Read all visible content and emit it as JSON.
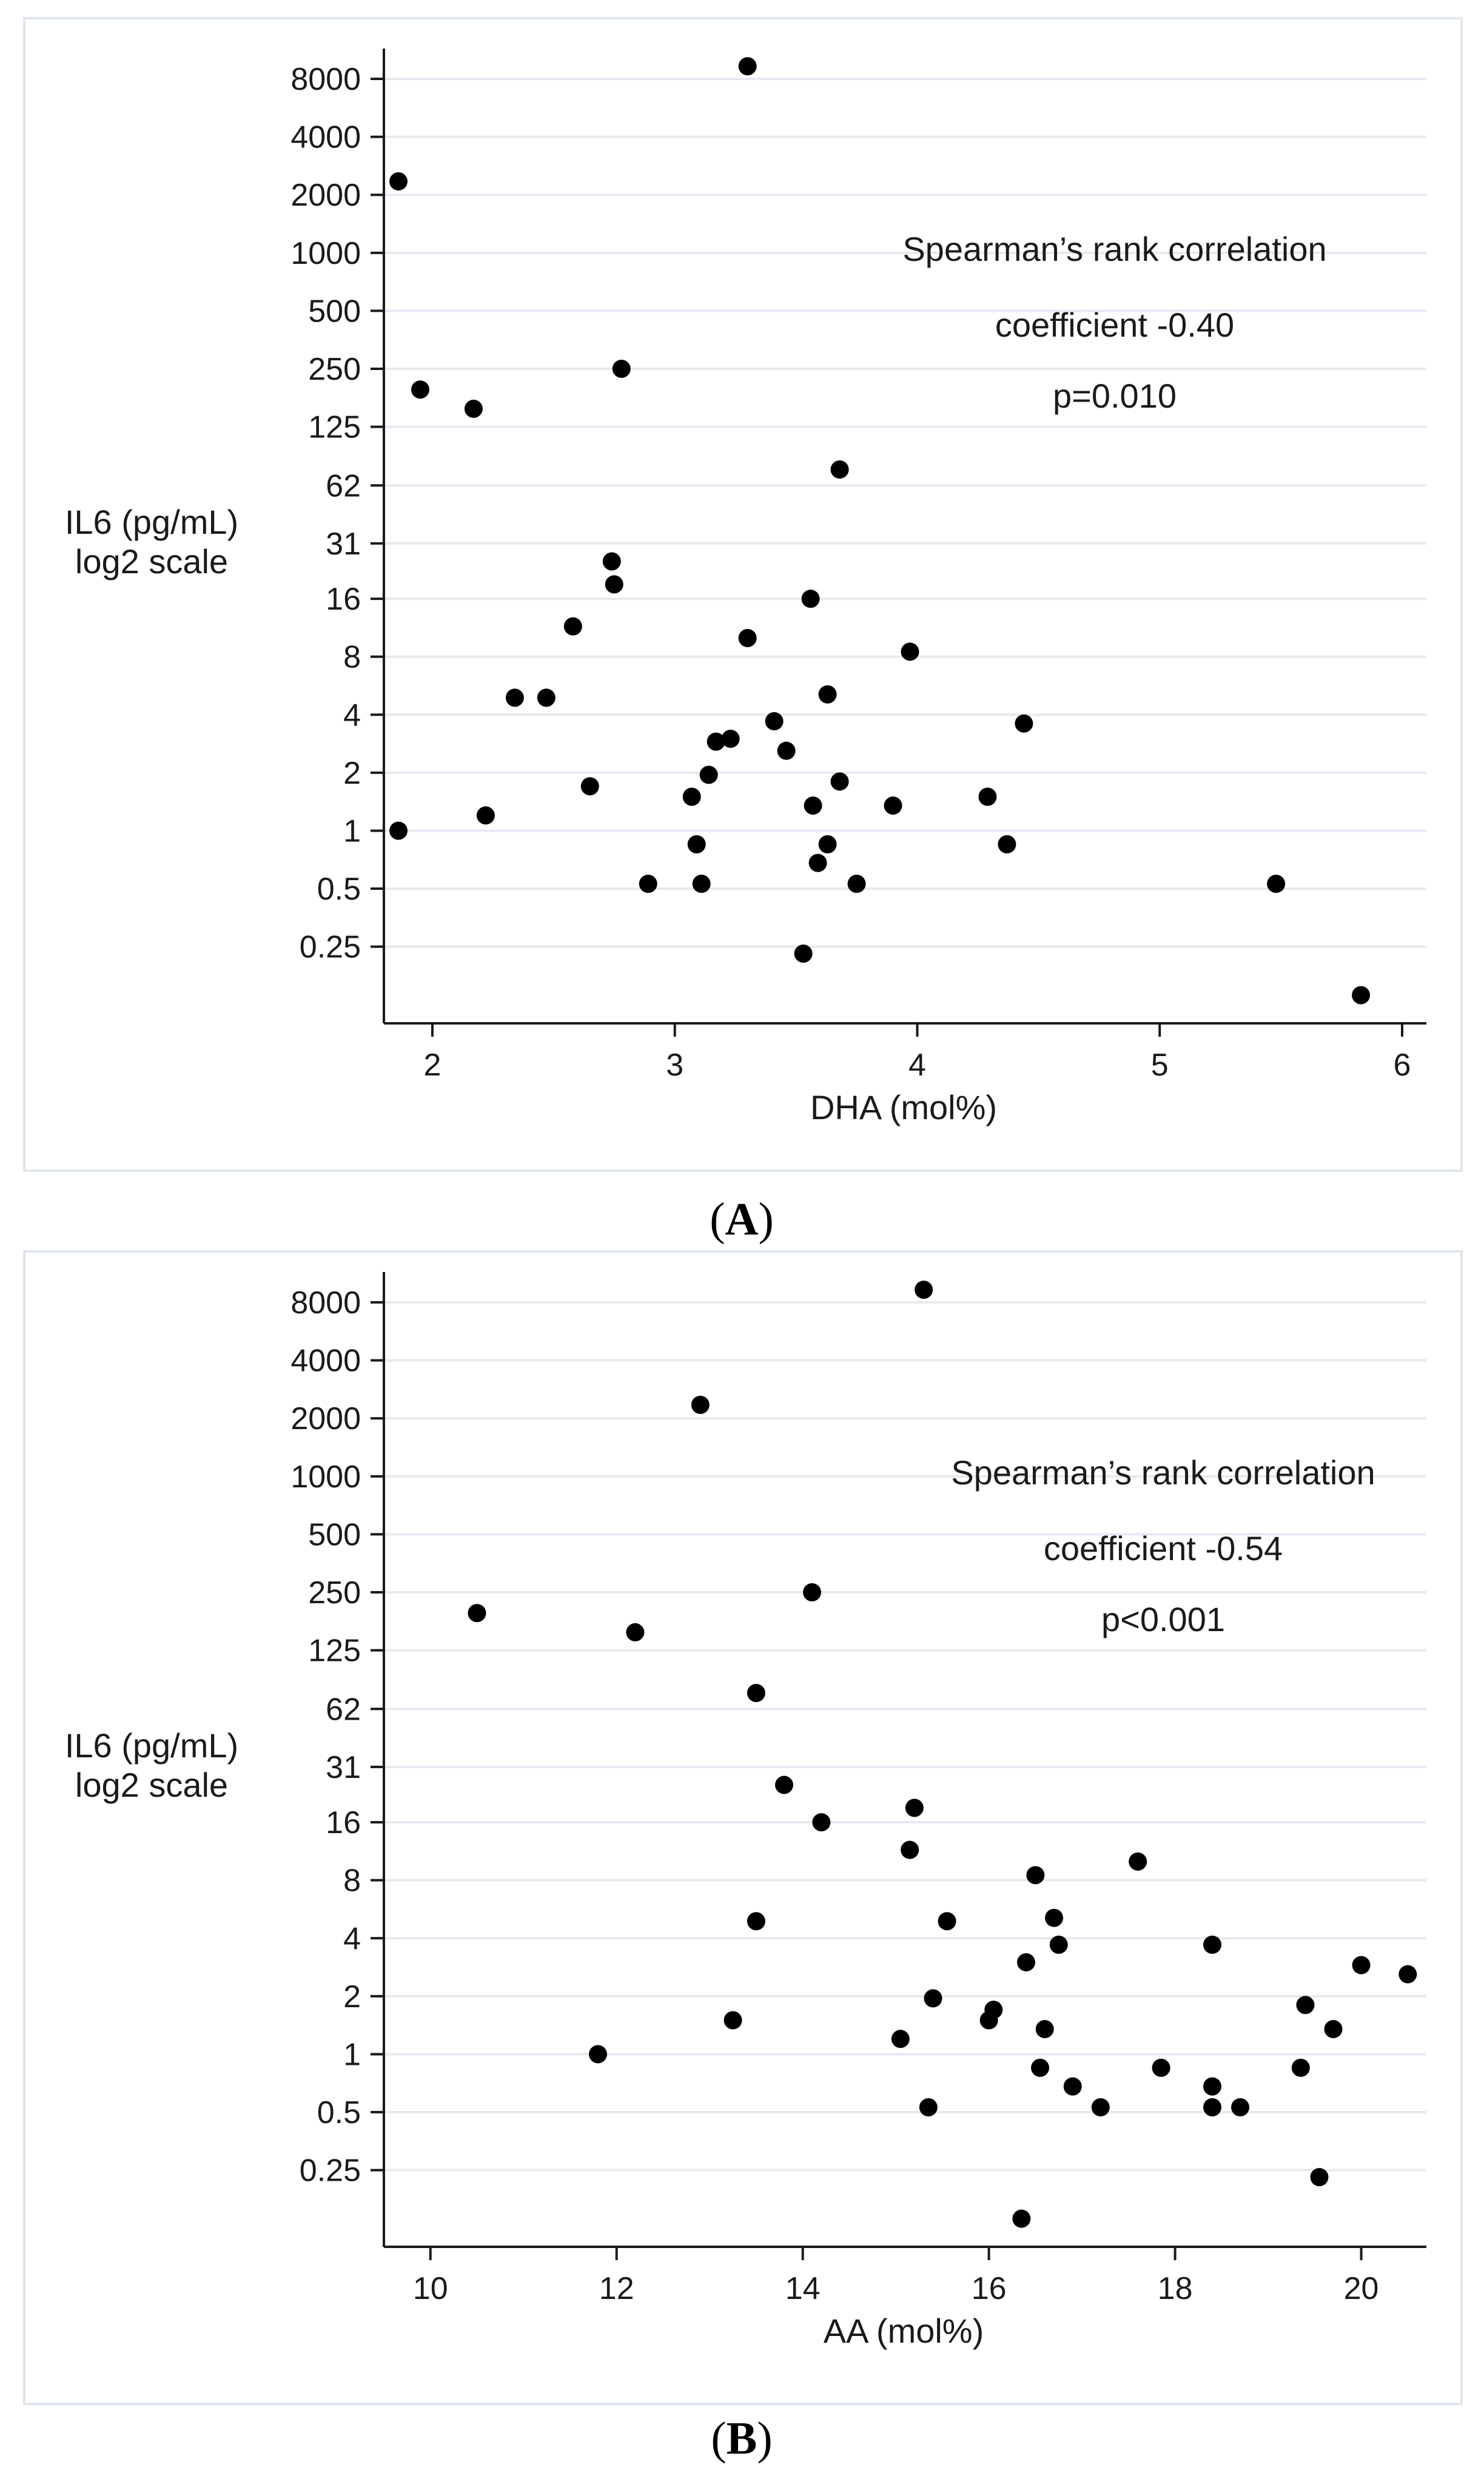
{
  "chart_data": [
    {
      "type": "scatter",
      "panel_label": "A",
      "xlabel": "DHA (mol%)",
      "ylabel": [
        "IL6 (pg/mL)",
        "log2 scale"
      ],
      "xlim": [
        1.8,
        6.1
      ],
      "xticks": [
        2,
        3,
        4,
        5,
        6
      ],
      "y_scale": "log2",
      "ylim": [
        0.1,
        11500
      ],
      "yticks": [
        0.25,
        0.5,
        1,
        2,
        4,
        8,
        16,
        31,
        62,
        125,
        250,
        500,
        1000,
        2000,
        4000,
        8000
      ],
      "yticklabels": [
        "0.25",
        "0.5",
        "1",
        "2",
        "4",
        "8",
        "16",
        "31",
        "62",
        "125",
        "250",
        "500",
        "1000",
        "2000",
        "4000",
        "8000"
      ],
      "grid": true,
      "annotation": [
        "Spearman’s rank correlation",
        "coefficient -0.40",
        "p=0.010"
      ],
      "points": [
        {
          "x": 1.86,
          "y": 2350
        },
        {
          "x": 1.95,
          "y": 195
        },
        {
          "x": 2.17,
          "y": 155
        },
        {
          "x": 2.78,
          "y": 250
        },
        {
          "x": 3.3,
          "y": 9300
        },
        {
          "x": 3.68,
          "y": 75
        },
        {
          "x": 2.74,
          "y": 25
        },
        {
          "x": 2.75,
          "y": 19
        },
        {
          "x": 3.56,
          "y": 16
        },
        {
          "x": 2.58,
          "y": 11.5
        },
        {
          "x": 3.3,
          "y": 10
        },
        {
          "x": 3.97,
          "y": 8.5
        },
        {
          "x": 2.34,
          "y": 4.9
        },
        {
          "x": 2.47,
          "y": 4.9
        },
        {
          "x": 3.63,
          "y": 5.1
        },
        {
          "x": 3.41,
          "y": 3.7
        },
        {
          "x": 4.44,
          "y": 3.6
        },
        {
          "x": 3.17,
          "y": 2.9
        },
        {
          "x": 3.23,
          "y": 3.0
        },
        {
          "x": 3.46,
          "y": 2.6
        },
        {
          "x": 2.65,
          "y": 1.7
        },
        {
          "x": 3.14,
          "y": 1.95
        },
        {
          "x": 3.68,
          "y": 1.8
        },
        {
          "x": 1.86,
          "y": 1.0
        },
        {
          "x": 2.22,
          "y": 1.2
        },
        {
          "x": 3.07,
          "y": 1.5
        },
        {
          "x": 3.57,
          "y": 1.35
        },
        {
          "x": 3.9,
          "y": 1.35
        },
        {
          "x": 4.29,
          "y": 1.5
        },
        {
          "x": 3.09,
          "y": 0.85
        },
        {
          "x": 3.63,
          "y": 0.85
        },
        {
          "x": 4.37,
          "y": 0.85
        },
        {
          "x": 3.59,
          "y": 0.68
        },
        {
          "x": 2.89,
          "y": 0.53
        },
        {
          "x": 3.11,
          "y": 0.53
        },
        {
          "x": 3.75,
          "y": 0.53
        },
        {
          "x": 5.48,
          "y": 0.53
        },
        {
          "x": 3.53,
          "y": 0.23
        },
        {
          "x": 5.83,
          "y": 0.14
        }
      ]
    },
    {
      "type": "scatter",
      "panel_label": "B",
      "xlabel": "AA (mol%)",
      "ylabel": [
        "IL6 (pg/mL)",
        "log2 scale"
      ],
      "xlim": [
        9.5,
        20.7
      ],
      "xticks": [
        10,
        12,
        14,
        16,
        18,
        20
      ],
      "y_scale": "log2",
      "ylim": [
        0.1,
        11500
      ],
      "yticks": [
        0.25,
        0.5,
        1,
        2,
        4,
        8,
        16,
        31,
        62,
        125,
        250,
        500,
        1000,
        2000,
        4000,
        8000
      ],
      "yticklabels": [
        "0.25",
        "0.5",
        "1",
        "2",
        "4",
        "8",
        "16",
        "31",
        "62",
        "125",
        "250",
        "500",
        "1000",
        "2000",
        "4000",
        "8000"
      ],
      "grid": true,
      "annotation": [
        "Spearman’s rank correlation",
        "coefficient -0.54",
        "p<0.001"
      ],
      "points": [
        {
          "x": 15.3,
          "y": 9300
        },
        {
          "x": 12.9,
          "y": 2350
        },
        {
          "x": 10.5,
          "y": 195
        },
        {
          "x": 12.2,
          "y": 155
        },
        {
          "x": 14.1,
          "y": 250
        },
        {
          "x": 13.5,
          "y": 75
        },
        {
          "x": 13.8,
          "y": 25
        },
        {
          "x": 15.2,
          "y": 19
        },
        {
          "x": 14.2,
          "y": 16
        },
        {
          "x": 15.15,
          "y": 11.5
        },
        {
          "x": 17.6,
          "y": 10
        },
        {
          "x": 16.5,
          "y": 8.5
        },
        {
          "x": 13.5,
          "y": 4.9
        },
        {
          "x": 15.55,
          "y": 4.9
        },
        {
          "x": 16.7,
          "y": 5.1
        },
        {
          "x": 16.75,
          "y": 3.7
        },
        {
          "x": 18.4,
          "y": 3.7
        },
        {
          "x": 16.4,
          "y": 3.0
        },
        {
          "x": 20.0,
          "y": 2.9
        },
        {
          "x": 20.5,
          "y": 2.6
        },
        {
          "x": 15.4,
          "y": 1.95
        },
        {
          "x": 16.05,
          "y": 1.7
        },
        {
          "x": 16.0,
          "y": 1.5
        },
        {
          "x": 19.4,
          "y": 1.8
        },
        {
          "x": 13.25,
          "y": 1.5
        },
        {
          "x": 16.6,
          "y": 1.35
        },
        {
          "x": 19.7,
          "y": 1.35
        },
        {
          "x": 11.8,
          "y": 1.0
        },
        {
          "x": 15.05,
          "y": 1.2
        },
        {
          "x": 16.55,
          "y": 0.85
        },
        {
          "x": 17.85,
          "y": 0.85
        },
        {
          "x": 19.35,
          "y": 0.85
        },
        {
          "x": 16.9,
          "y": 0.68
        },
        {
          "x": 18.4,
          "y": 0.68
        },
        {
          "x": 15.35,
          "y": 0.53
        },
        {
          "x": 17.2,
          "y": 0.53
        },
        {
          "x": 18.4,
          "y": 0.53
        },
        {
          "x": 18.7,
          "y": 0.53
        },
        {
          "x": 19.55,
          "y": 0.23
        },
        {
          "x": 16.35,
          "y": 0.14
        }
      ]
    }
  ]
}
